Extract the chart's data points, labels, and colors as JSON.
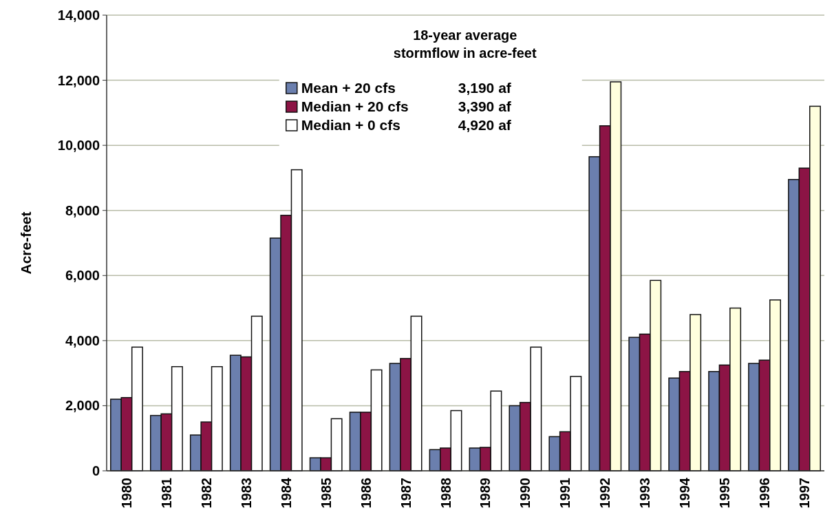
{
  "chart_data": {
    "type": "bar",
    "ylabel": "Acre-feet",
    "legend_title": "18-year average stormflow in acre-feet",
    "legend": "top",
    "grid": "y",
    "categories": [
      "1980",
      "1981",
      "1982",
      "1983",
      "1984",
      "1985",
      "1986",
      "1987",
      "1988",
      "1989",
      "1990",
      "1991",
      "1992",
      "1993",
      "1994",
      "1995",
      "1996",
      "1997"
    ],
    "series": [
      {
        "name": "Mean + 20 cfs",
        "color": "#6b7fae",
        "values": [
          2200,
          1700,
          1100,
          3550,
          7150,
          400,
          1800,
          3300,
          650,
          700,
          2000,
          1050,
          9650,
          4100,
          2850,
          3050,
          3300,
          8950
        ]
      },
      {
        "name": "Median + 20 cfs",
        "color": "#8c1445",
        "values": [
          2250,
          1750,
          1500,
          3500,
          7850,
          400,
          1800,
          3450,
          700,
          720,
          2100,
          1200,
          10600,
          4200,
          3050,
          3250,
          3400,
          9300
        ]
      },
      {
        "name": "Median + 0 cfs",
        "color": "#ffffff",
        "colors": [
          "#ffffff",
          "#ffffff",
          "#ffffff",
          "#ffffff",
          "#ffffff",
          "#ffffff",
          "#ffffff",
          "#ffffff",
          "#ffffff",
          "#ffffff",
          "#ffffff",
          "#ffffff",
          "#ffffdd",
          "#ffffdd",
          "#ffffdd",
          "#ffffdd",
          "#ffffdd",
          "#ffffdd"
        ],
        "values": [
          3800,
          3200,
          3200,
          4750,
          9250,
          1600,
          3100,
          4750,
          1850,
          2450,
          3800,
          2900,
          11950,
          5850,
          4800,
          5000,
          5250,
          11200
        ]
      }
    ],
    "annotations": [
      "3,190 af",
      "3,390 af",
      "4,920 af"
    ],
    "ylim": [
      0,
      14000
    ],
    "yticks": [
      {
        "value": 0,
        "label": "0"
      },
      {
        "value": 2000,
        "label": "2,000"
      },
      {
        "value": 4000,
        "label": "4,000"
      },
      {
        "value": 6000,
        "label": "6,000"
      },
      {
        "value": 8000,
        "label": "8,000"
      },
      {
        "value": 10000,
        "label": "10,000"
      },
      {
        "value": 12000,
        "label": "12,000"
      },
      {
        "value": 14000,
        "label": "14,000"
      }
    ]
  }
}
